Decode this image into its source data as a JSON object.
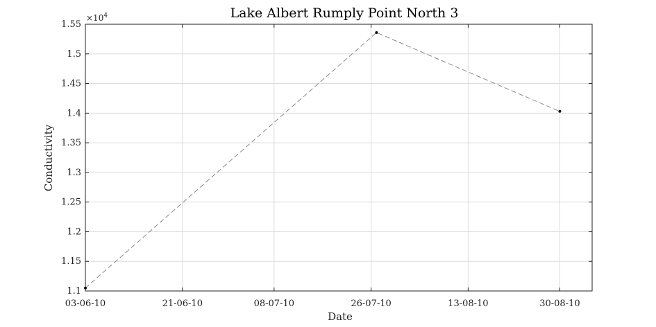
{
  "chart_data": {
    "type": "line",
    "title": "Lake Albert Rumply Point North 3",
    "xlabel": "Date",
    "ylabel": "Conductivity",
    "y_exponent_label": "×10",
    "y_exponent_power": "4",
    "x_tick_labels": [
      "03-06-10",
      "21-06-10",
      "08-07-10",
      "26-07-10",
      "13-08-10",
      "30-08-10"
    ],
    "x_tick_dates": [
      "2010-06-03",
      "2010-06-21",
      "2010-07-08",
      "2010-07-26",
      "2010-08-13",
      "2010-08-30"
    ],
    "x_range": [
      "2010-06-03",
      "2010-09-05"
    ],
    "y_tick_labels": [
      "1.1",
      "1.15",
      "1.2",
      "1.25",
      "1.3",
      "1.35",
      "1.4",
      "1.45",
      "1.5",
      "1.55"
    ],
    "ylim": [
      11000,
      15500
    ],
    "grid": true,
    "series": [
      {
        "x": [
          "2010-06-03",
          "2010-07-27",
          "2010-08-30"
        ],
        "y": [
          11050,
          15360,
          14030
        ]
      }
    ]
  }
}
